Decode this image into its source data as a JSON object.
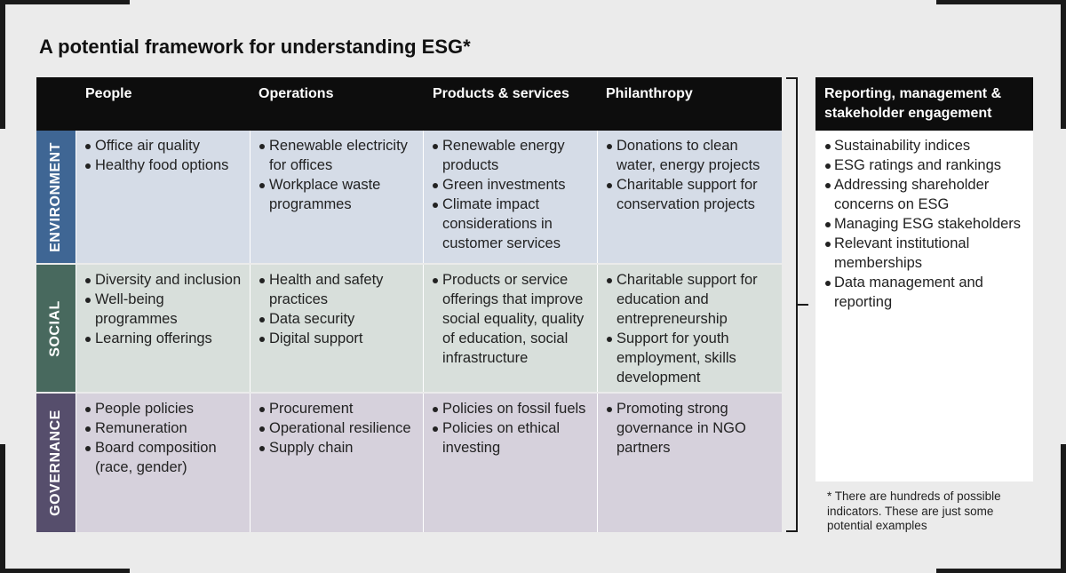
{
  "title": "A potential framework for understanding ESG*",
  "columns": [
    "People",
    "Operations",
    "Products & services",
    "Philanthropy"
  ],
  "rows": [
    {
      "label": "ENVIRONMENT",
      "color": "#3f6694",
      "bg": "#d5dce7",
      "cells": [
        [
          "Office air quality",
          "Healthy food options"
        ],
        [
          "Renewable electricity for offices",
          "Workplace waste programmes"
        ],
        [
          "Renewable energy products",
          "Green investments",
          "Climate impact considerations in customer services"
        ],
        [
          "Donations to clean water, energy projects",
          "Charitable support for conservation projects"
        ]
      ]
    },
    {
      "label": "SOCIAL",
      "color": "#48695e",
      "bg": "#d8dfdb",
      "cells": [
        [
          "Diversity and inclusion",
          "Well-being programmes",
          "Learning offerings"
        ],
        [
          "Health and safety practices",
          "Data security",
          "Digital support"
        ],
        [
          "Products or service offerings that improve social equality, quality of education, social infrastructure"
        ],
        [
          "Charitable support for education and entrepreneurship",
          "Support for youth employment, skills development"
        ]
      ]
    },
    {
      "label": "GOVERNANCE",
      "color": "#564e6c",
      "bg": "#d6d1dc",
      "cells": [
        [
          "People policies",
          "Remuneration",
          "Board composition (race, gender)"
        ],
        [
          "Procurement",
          "Operational resilience",
          "Supply chain"
        ],
        [
          "Policies on fossil fuels",
          "Policies on ethical investing"
        ],
        [
          "Promoting strong governance in NGO partners"
        ]
      ]
    }
  ],
  "side": {
    "title": "Reporting, management & stakeholder engagement",
    "items": [
      "Sustainability indices",
      "ESG ratings and rankings",
      "Addressing shareholder concerns on ESG",
      "Managing ESG stakeholders",
      "Relevant institutional memberships",
      "Data management and reporting"
    ]
  },
  "footnote": "* There are hundreds of possible indicators. These are just some potential examples"
}
